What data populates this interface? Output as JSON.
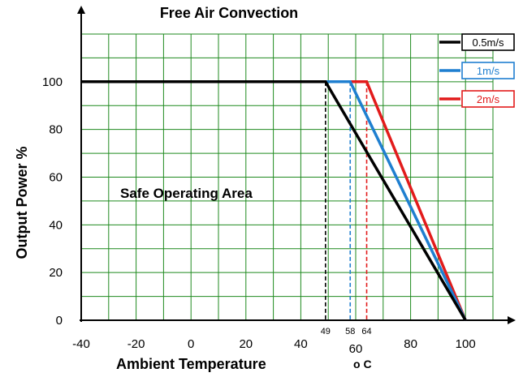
{
  "chart_data": {
    "type": "line",
    "title": "Free Air Convection",
    "xlabel": "Ambient Temperature",
    "xunit": "o C",
    "ylabel": "Output Power %",
    "xlim": [
      -40,
      110
    ],
    "ylim": [
      0,
      120
    ],
    "x_ticks": [
      -40,
      -20,
      0,
      20,
      40,
      60,
      80,
      100
    ],
    "y_ticks": [
      0,
      20,
      40,
      60,
      80,
      100
    ],
    "grid": true,
    "grid_color": "#1f8a1f",
    "legend_position": "top-right",
    "annotation": "Safe Operating Area",
    "series": [
      {
        "name": "0.5m/s",
        "color": "#000000",
        "x": [
          -40,
          49,
          100
        ],
        "y": [
          100,
          100,
          0
        ]
      },
      {
        "name": "1m/s",
        "color": "#1f7fd0",
        "x": [
          49,
          58,
          100
        ],
        "y": [
          100,
          100,
          0
        ]
      },
      {
        "name": "2m/s",
        "color": "#e21b1b",
        "x": [
          58,
          64,
          100
        ],
        "y": [
          100,
          100,
          0
        ]
      }
    ],
    "markers": [
      {
        "label": "49",
        "x": 49,
        "color": "#000000"
      },
      {
        "label": "58",
        "x": 58,
        "color": "#1f7fd0"
      },
      {
        "label": "64",
        "x": 64,
        "color": "#e21b1b"
      }
    ]
  }
}
